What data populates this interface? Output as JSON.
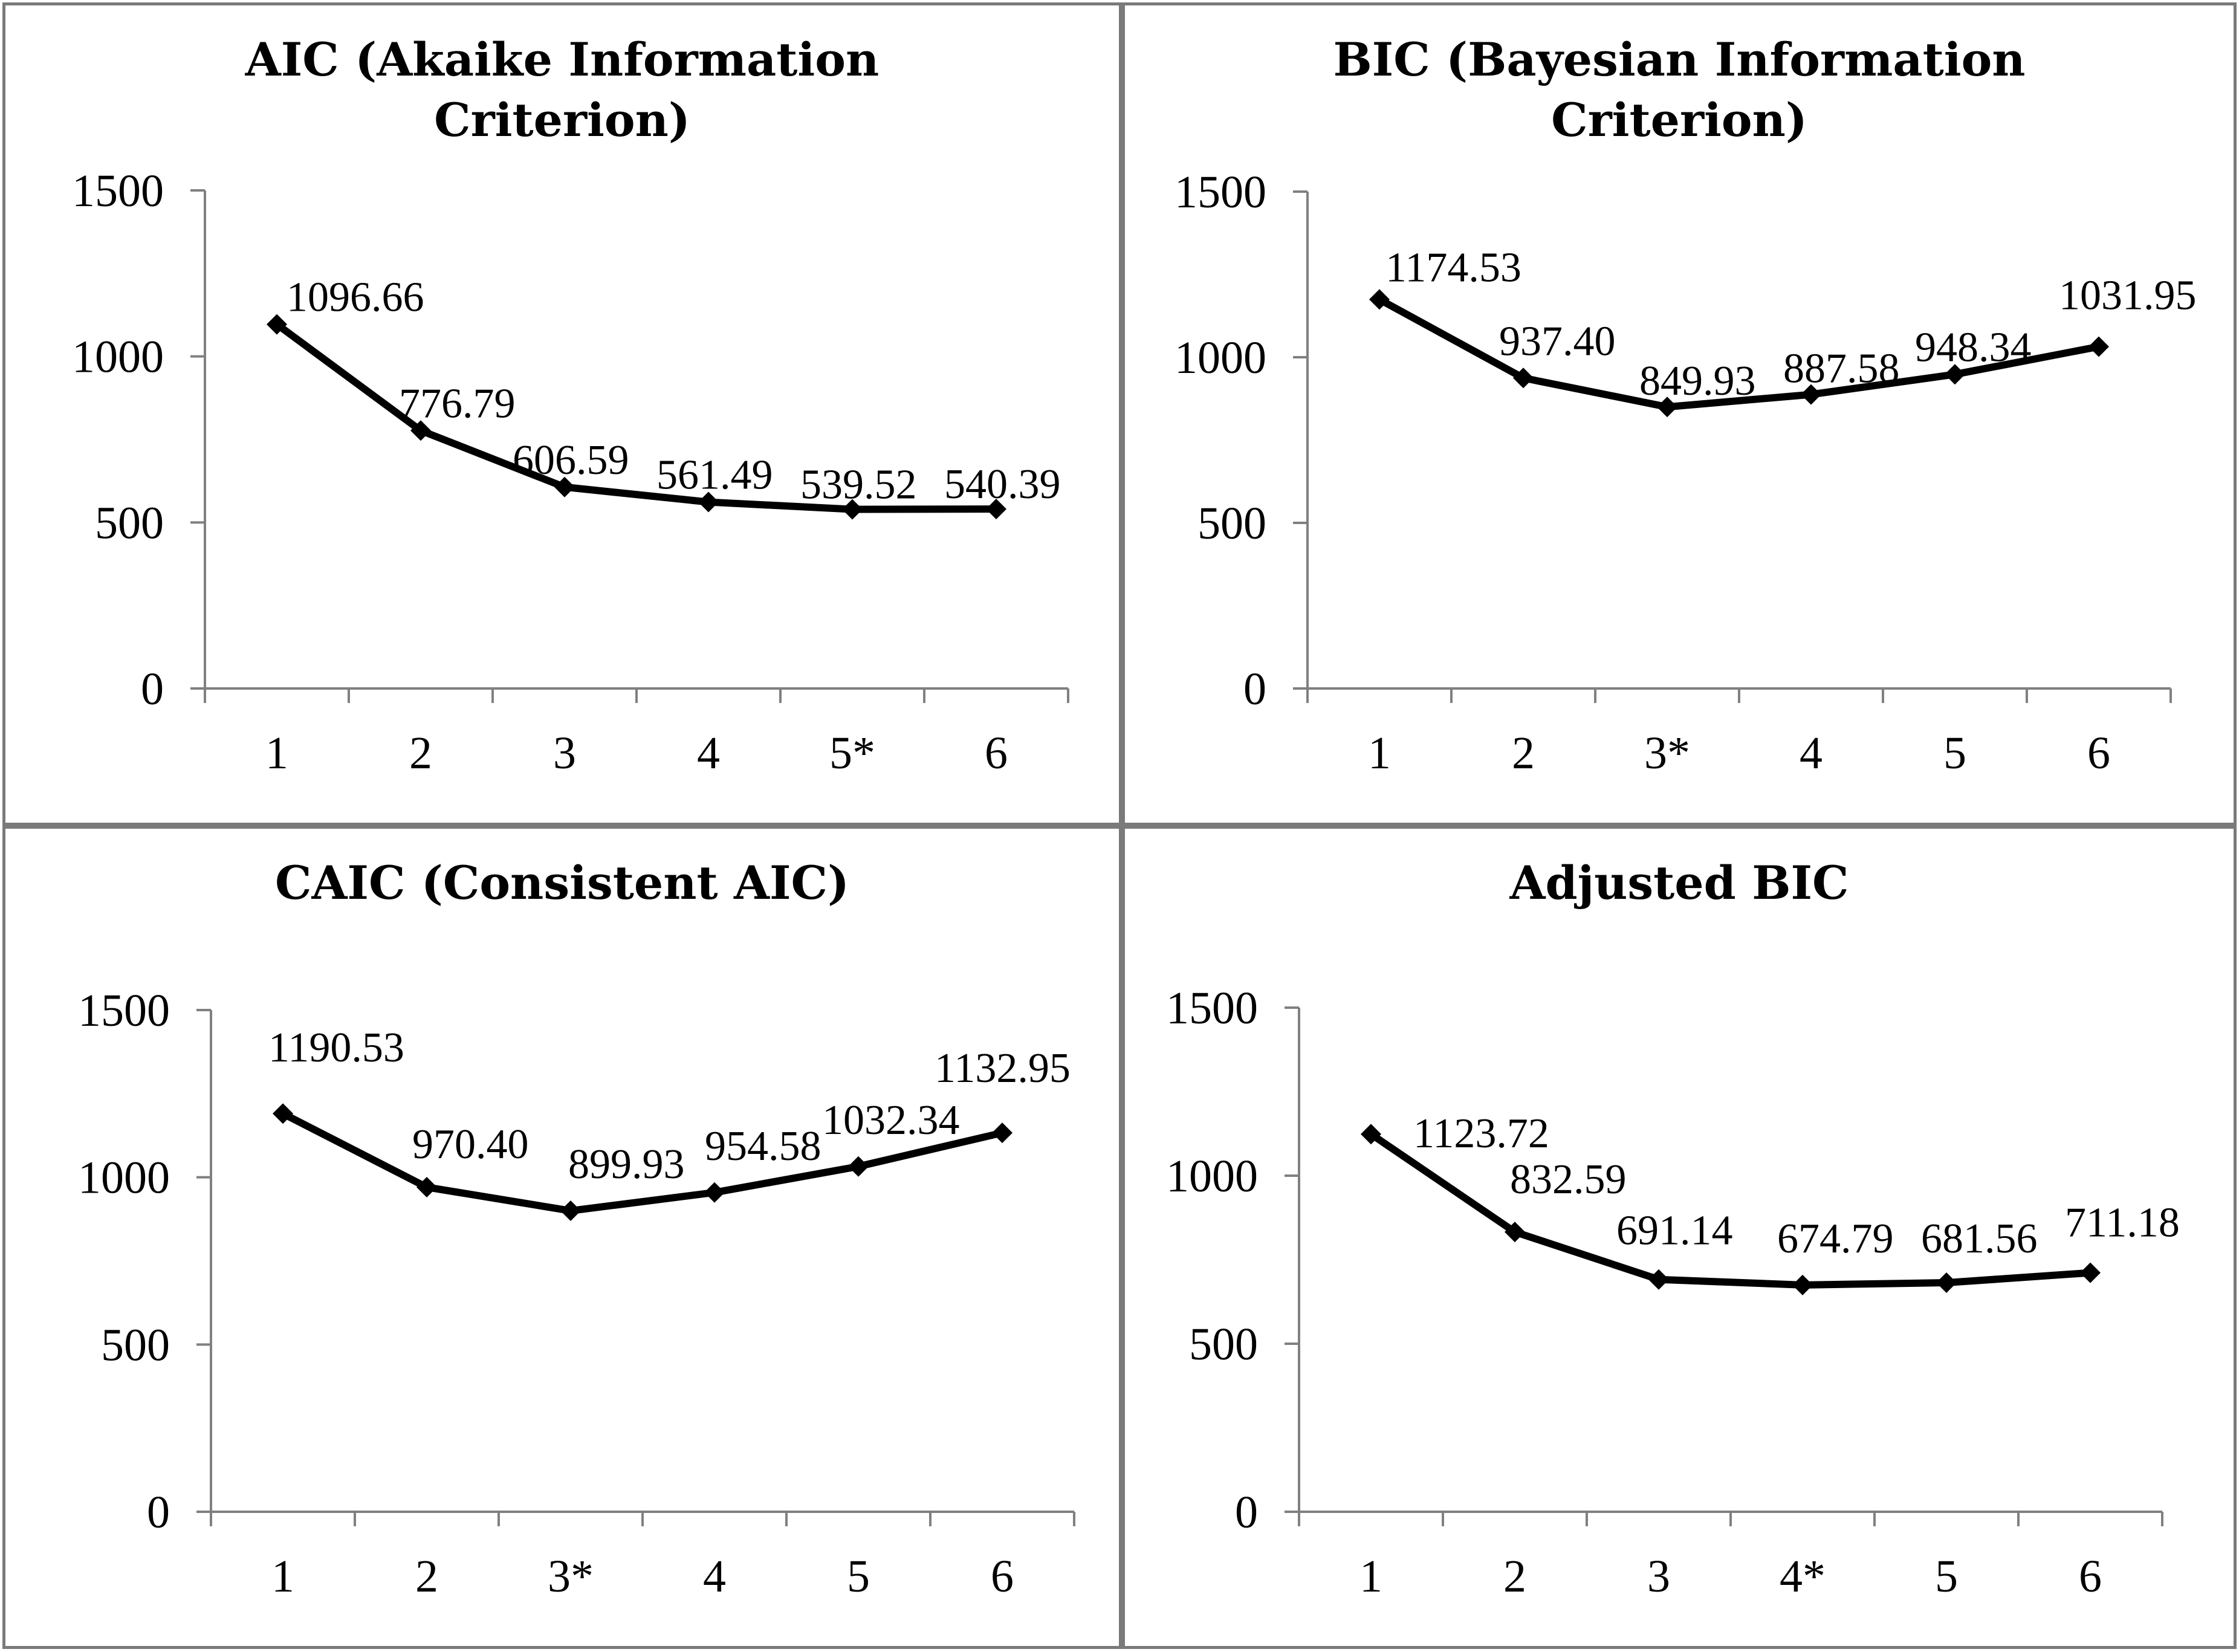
{
  "chart_data": [
    {
      "type": "line",
      "title": "AIC (Akaike Information Criterion)",
      "categories": [
        "1",
        "2",
        "3",
        "4",
        "5*",
        "6"
      ],
      "values": [
        1096.66,
        776.79,
        606.59,
        561.49,
        539.52,
        540.39
      ],
      "data_labels": [
        "1096.66",
        "776.79",
        "606.59",
        "561.49",
        "539.52",
        "540.39"
      ],
      "yticks": [
        "0",
        "500",
        "1000",
        "1500"
      ],
      "ylim": [
        0,
        1500
      ],
      "xlabel": "",
      "ylabel": "",
      "grid": false,
      "legend": "none"
    },
    {
      "type": "line",
      "title": "BIC (Bayesian Information Criterion)",
      "categories": [
        "1",
        "2",
        "3*",
        "4",
        "5",
        "6"
      ],
      "values": [
        1174.53,
        937.4,
        849.93,
        887.58,
        948.34,
        1031.95
      ],
      "data_labels": [
        "1174.53",
        "937.40",
        "849.93",
        "887.58",
        "948.34",
        "1031.95"
      ],
      "yticks": [
        "0",
        "500",
        "1000",
        "1500"
      ],
      "ylim": [
        0,
        1500
      ],
      "xlabel": "",
      "ylabel": "",
      "grid": false,
      "legend": "none"
    },
    {
      "type": "line",
      "title": "CAIC (Consistent AIC)",
      "categories": [
        "1",
        "2",
        "3*",
        "4",
        "5",
        "6"
      ],
      "values": [
        1190.53,
        970.4,
        899.93,
        954.58,
        1032.34,
        1132.95
      ],
      "data_labels": [
        "1190.53",
        "970.40",
        "899.93",
        "954.58",
        "1032.34",
        "1132.95"
      ],
      "yticks": [
        "0",
        "500",
        "1000",
        "1500"
      ],
      "ylim": [
        0,
        1500
      ],
      "xlabel": "",
      "ylabel": "",
      "grid": false,
      "legend": "none"
    },
    {
      "type": "line",
      "title": "Adjusted BIC",
      "categories": [
        "1",
        "2",
        "3",
        "4*",
        "5",
        "6"
      ],
      "values": [
        1123.72,
        832.59,
        691.14,
        674.79,
        681.56,
        711.18
      ],
      "data_labels": [
        "1123.72",
        "832.59",
        "691.14",
        "674.79",
        "681.56",
        "711.18"
      ],
      "yticks": [
        "0",
        "500",
        "1000",
        "1500"
      ],
      "ylim": [
        0,
        1500
      ],
      "xlabel": "",
      "ylabel": "",
      "grid": false,
      "legend": "none"
    }
  ]
}
